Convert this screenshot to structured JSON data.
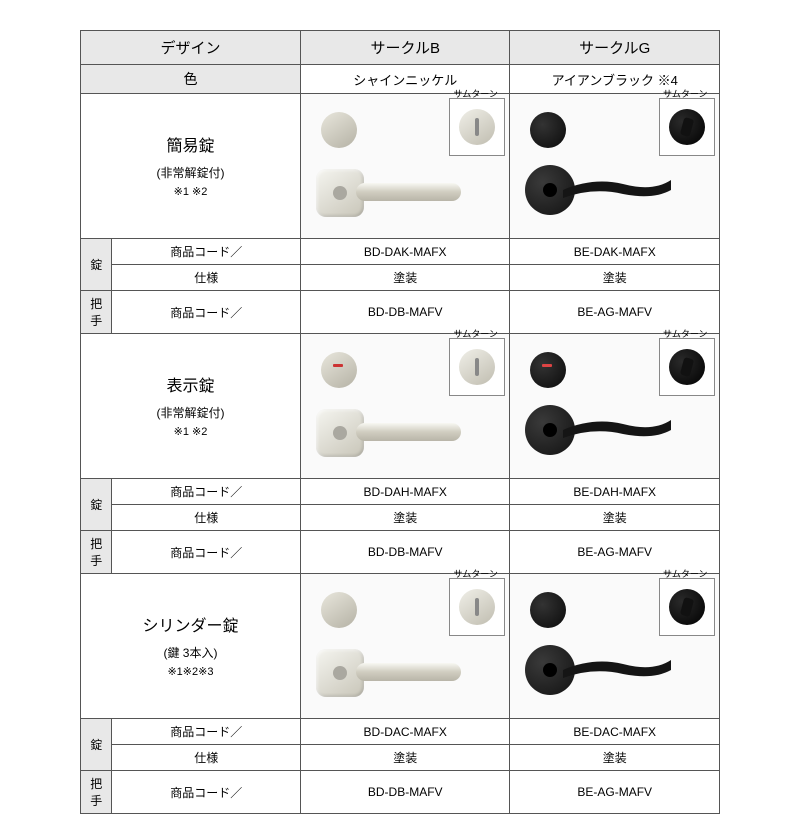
{
  "header": {
    "design": "デザイン",
    "col_b": "サークルB",
    "col_g": "サークルG",
    "color_label": "色",
    "color_b": "シャインニッケル",
    "color_g": "アイアンブラック ※4"
  },
  "labels": {
    "thumbturn": "サムターン",
    "lock": "錠",
    "handle": "把手",
    "product_code": "商品コード／",
    "spec": "仕様",
    "spec_val": "塗装"
  },
  "rows": [
    {
      "title": "簡易錠",
      "subtitle": "(非常解錠付)",
      "notes": "※1 ※2",
      "lock_code_b": "BD-DAK-MAFX",
      "lock_code_g": "BE-DAK-MAFX",
      "handle_code_b": "BD-DB-MAFV",
      "handle_code_g": "BE-AG-MAFV",
      "indicator": false
    },
    {
      "title": "表示錠",
      "subtitle": "(非常解錠付)",
      "notes": "※1 ※2",
      "lock_code_b": "BD-DAH-MAFX",
      "lock_code_g": "BE-DAH-MAFX",
      "handle_code_b": "BD-DB-MAFV",
      "handle_code_g": "BE-AG-MAFV",
      "indicator": true
    },
    {
      "title": "シリンダー錠",
      "subtitle": "(鍵 3本入)",
      "notes": "※1※2※3",
      "lock_code_b": "BD-DAC-MAFX",
      "lock_code_g": "BE-DAC-MAFX",
      "handle_code_b": "BD-DB-MAFV",
      "handle_code_g": "BE-AG-MAFV",
      "indicator": false
    }
  ],
  "colors": {
    "nickel": "#d0cdc0",
    "black": "#1a1a1a",
    "header_bg": "#e8e8e8",
    "border": "#555555"
  }
}
